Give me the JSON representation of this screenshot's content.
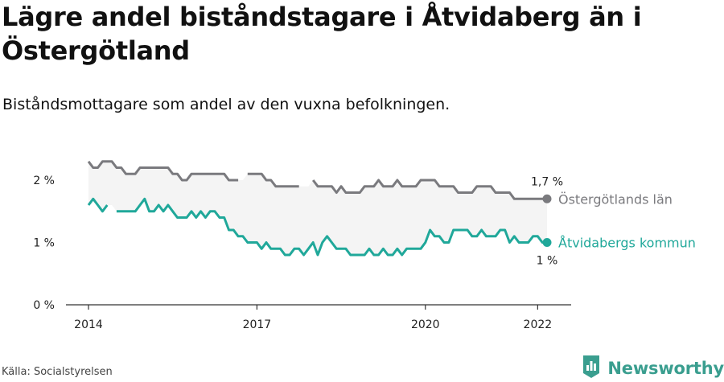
{
  "title": "Lägre andel biståndstagare i Åtvidaberg än i Östergötland",
  "subtitle": "Biståndsmottagare som andel av den vuxna befolkningen.",
  "source": "Källa: Socialstyrelsen",
  "brand": {
    "name": "Newsworthy",
    "logo_icon": "bar-chart-logo-icon"
  },
  "colors": {
    "regional": "#7a7a7e",
    "municipal": "#20a89a",
    "band": "#f4f4f4",
    "axis": "#333333",
    "text": "#111111"
  },
  "chart_data": {
    "type": "line",
    "title": "Lägre andel biståndstagare i Åtvidaberg än i Östergötland",
    "xlabel": "",
    "ylabel": "",
    "xlim": [
      "2014-01",
      "2022-03"
    ],
    "ylim": [
      0,
      2.5
    ],
    "x_ticks": [
      {
        "year": 2014,
        "label": "2014"
      },
      {
        "year": 2017,
        "label": "2017"
      },
      {
        "year": 2020,
        "label": "2020"
      },
      {
        "year": 2022,
        "label": "2022"
      }
    ],
    "y_ticks": [
      {
        "value": 0,
        "label": "0 %"
      },
      {
        "value": 1,
        "label": "1 %"
      },
      {
        "value": 2,
        "label": "2 %"
      }
    ],
    "grid": false,
    "legend": "end-of-line labels",
    "series": [
      {
        "name": "Östergötlands län",
        "color": "#7a7a7e",
        "end_value_label": "1,7 %",
        "points": [
          {
            "x": "2014-01",
            "y": 2.3
          },
          {
            "x": "2014-02",
            "y": 2.2
          },
          {
            "x": "2014-03",
            "y": 2.2
          },
          {
            "x": "2014-04",
            "y": 2.3
          },
          {
            "x": "2014-05",
            "y": 2.3
          },
          {
            "x": "2014-06",
            "y": 2.3
          },
          {
            "x": "2014-07",
            "y": 2.2
          },
          {
            "x": "2014-08",
            "y": 2.2
          },
          {
            "x": "2014-09",
            "y": 2.1
          },
          {
            "x": "2014-10",
            "y": 2.1
          },
          {
            "x": "2014-11",
            "y": 2.1
          },
          {
            "x": "2014-12",
            "y": 2.2
          },
          {
            "x": "2015-01",
            "y": 2.2
          },
          {
            "x": "2015-02",
            "y": 2.2
          },
          {
            "x": "2015-03",
            "y": 2.2
          },
          {
            "x": "2015-04",
            "y": 2.2
          },
          {
            "x": "2015-05",
            "y": 2.2
          },
          {
            "x": "2015-06",
            "y": 2.2
          },
          {
            "x": "2015-07",
            "y": 2.1
          },
          {
            "x": "2015-08",
            "y": 2.1
          },
          {
            "x": "2015-09",
            "y": 2.0
          },
          {
            "x": "2015-10",
            "y": 2.0
          },
          {
            "x": "2015-11",
            "y": 2.1
          },
          {
            "x": "2015-12",
            "y": 2.1
          },
          {
            "x": "2016-01",
            "y": 2.1
          },
          {
            "x": "2016-02",
            "y": 2.1
          },
          {
            "x": "2016-03",
            "y": 2.1
          },
          {
            "x": "2016-04",
            "y": 2.1
          },
          {
            "x": "2016-05",
            "y": 2.1
          },
          {
            "x": "2016-06",
            "y": 2.1
          },
          {
            "x": "2016-07",
            "y": 2.0
          },
          {
            "x": "2016-08",
            "y": 2.0
          },
          {
            "x": "2016-09",
            "y": 2.0
          },
          {
            "x": "2016-10",
            "y": null
          },
          {
            "x": "2016-11",
            "y": 2.1
          },
          {
            "x": "2016-12",
            "y": 2.1
          },
          {
            "x": "2017-01",
            "y": 2.1
          },
          {
            "x": "2017-02",
            "y": 2.1
          },
          {
            "x": "2017-03",
            "y": 2.0
          },
          {
            "x": "2017-04",
            "y": 2.0
          },
          {
            "x": "2017-05",
            "y": 1.9
          },
          {
            "x": "2017-06",
            "y": 1.9
          },
          {
            "x": "2017-07",
            "y": 1.9
          },
          {
            "x": "2017-08",
            "y": 1.9
          },
          {
            "x": "2017-09",
            "y": 1.9
          },
          {
            "x": "2017-10",
            "y": 1.9
          },
          {
            "x": "2017-11",
            "y": null
          },
          {
            "x": "2018-01",
            "y": 2.0
          },
          {
            "x": "2018-02",
            "y": 1.9
          },
          {
            "x": "2018-03",
            "y": 1.9
          },
          {
            "x": "2018-04",
            "y": 1.9
          },
          {
            "x": "2018-05",
            "y": 1.9
          },
          {
            "x": "2018-06",
            "y": 1.8
          },
          {
            "x": "2018-07",
            "y": 1.9
          },
          {
            "x": "2018-08",
            "y": 1.8
          },
          {
            "x": "2018-09",
            "y": 1.8
          },
          {
            "x": "2018-10",
            "y": 1.8
          },
          {
            "x": "2018-11",
            "y": 1.8
          },
          {
            "x": "2018-12",
            "y": 1.9
          },
          {
            "x": "2019-01",
            "y": 1.9
          },
          {
            "x": "2019-02",
            "y": 1.9
          },
          {
            "x": "2019-03",
            "y": 2.0
          },
          {
            "x": "2019-04",
            "y": 1.9
          },
          {
            "x": "2019-05",
            "y": 1.9
          },
          {
            "x": "2019-06",
            "y": 1.9
          },
          {
            "x": "2019-07",
            "y": 2.0
          },
          {
            "x": "2019-08",
            "y": 1.9
          },
          {
            "x": "2019-09",
            "y": 1.9
          },
          {
            "x": "2019-10",
            "y": 1.9
          },
          {
            "x": "2019-11",
            "y": 1.9
          },
          {
            "x": "2019-12",
            "y": 2.0
          },
          {
            "x": "2020-01",
            "y": 2.0
          },
          {
            "x": "2020-02",
            "y": 2.0
          },
          {
            "x": "2020-03",
            "y": 2.0
          },
          {
            "x": "2020-04",
            "y": 1.9
          },
          {
            "x": "2020-05",
            "y": 1.9
          },
          {
            "x": "2020-06",
            "y": 1.9
          },
          {
            "x": "2020-07",
            "y": 1.9
          },
          {
            "x": "2020-08",
            "y": 1.8
          },
          {
            "x": "2020-09",
            "y": 1.8
          },
          {
            "x": "2020-10",
            "y": 1.8
          },
          {
            "x": "2020-11",
            "y": 1.8
          },
          {
            "x": "2020-12",
            "y": 1.9
          },
          {
            "x": "2021-01",
            "y": 1.9
          },
          {
            "x": "2021-02",
            "y": 1.9
          },
          {
            "x": "2021-03",
            "y": 1.9
          },
          {
            "x": "2021-04",
            "y": 1.8
          },
          {
            "x": "2021-05",
            "y": 1.8
          },
          {
            "x": "2021-06",
            "y": 1.8
          },
          {
            "x": "2021-07",
            "y": 1.8
          },
          {
            "x": "2021-08",
            "y": 1.7
          },
          {
            "x": "2021-09",
            "y": 1.7
          },
          {
            "x": "2021-10",
            "y": 1.7
          },
          {
            "x": "2021-11",
            "y": 1.7
          },
          {
            "x": "2021-12",
            "y": 1.7
          },
          {
            "x": "2022-01",
            "y": 1.7
          },
          {
            "x": "2022-02",
            "y": 1.7
          },
          {
            "x": "2022-03",
            "y": 1.7
          }
        ]
      },
      {
        "name": "Åtvidabergs kommun",
        "color": "#20a89a",
        "end_value_label": "1 %",
        "points": [
          {
            "x": "2014-01",
            "y": 1.6
          },
          {
            "x": "2014-02",
            "y": 1.7
          },
          {
            "x": "2014-03",
            "y": 1.6
          },
          {
            "x": "2014-04",
            "y": 1.5
          },
          {
            "x": "2014-05",
            "y": 1.6
          },
          {
            "x": "2014-06",
            "y": null
          },
          {
            "x": "2014-07",
            "y": 1.5
          },
          {
            "x": "2014-08",
            "y": 1.5
          },
          {
            "x": "2014-09",
            "y": 1.5
          },
          {
            "x": "2014-10",
            "y": 1.5
          },
          {
            "x": "2014-11",
            "y": 1.5
          },
          {
            "x": "2014-12",
            "y": 1.6
          },
          {
            "x": "2015-01",
            "y": 1.7
          },
          {
            "x": "2015-02",
            "y": 1.5
          },
          {
            "x": "2015-03",
            "y": 1.5
          },
          {
            "x": "2015-04",
            "y": 1.6
          },
          {
            "x": "2015-05",
            "y": 1.5
          },
          {
            "x": "2015-06",
            "y": 1.6
          },
          {
            "x": "2015-07",
            "y": 1.5
          },
          {
            "x": "2015-08",
            "y": 1.4
          },
          {
            "x": "2015-09",
            "y": 1.4
          },
          {
            "x": "2015-10",
            "y": 1.4
          },
          {
            "x": "2015-11",
            "y": 1.5
          },
          {
            "x": "2015-12",
            "y": 1.4
          },
          {
            "x": "2016-01",
            "y": 1.5
          },
          {
            "x": "2016-02",
            "y": 1.4
          },
          {
            "x": "2016-03",
            "y": 1.5
          },
          {
            "x": "2016-04",
            "y": 1.5
          },
          {
            "x": "2016-05",
            "y": 1.4
          },
          {
            "x": "2016-06",
            "y": 1.4
          },
          {
            "x": "2016-07",
            "y": 1.2
          },
          {
            "x": "2016-08",
            "y": 1.2
          },
          {
            "x": "2016-09",
            "y": 1.1
          },
          {
            "x": "2016-10",
            "y": 1.1
          },
          {
            "x": "2016-11",
            "y": 1.0
          },
          {
            "x": "2016-12",
            "y": 1.0
          },
          {
            "x": "2017-01",
            "y": 1.0
          },
          {
            "x": "2017-02",
            "y": 0.9
          },
          {
            "x": "2017-03",
            "y": 1.0
          },
          {
            "x": "2017-04",
            "y": 0.9
          },
          {
            "x": "2017-05",
            "y": 0.9
          },
          {
            "x": "2017-06",
            "y": 0.9
          },
          {
            "x": "2017-07",
            "y": 0.8
          },
          {
            "x": "2017-08",
            "y": 0.8
          },
          {
            "x": "2017-09",
            "y": 0.9
          },
          {
            "x": "2017-10",
            "y": 0.9
          },
          {
            "x": "2017-11",
            "y": 0.8
          },
          {
            "x": "2017-12",
            "y": 0.9
          },
          {
            "x": "2018-01",
            "y": 1.0
          },
          {
            "x": "2018-02",
            "y": 0.8
          },
          {
            "x": "2018-03",
            "y": 1.0
          },
          {
            "x": "2018-04",
            "y": 1.1
          },
          {
            "x": "2018-05",
            "y": 1.0
          },
          {
            "x": "2018-06",
            "y": 0.9
          },
          {
            "x": "2018-07",
            "y": 0.9
          },
          {
            "x": "2018-08",
            "y": 0.9
          },
          {
            "x": "2018-09",
            "y": 0.8
          },
          {
            "x": "2018-10",
            "y": 0.8
          },
          {
            "x": "2018-11",
            "y": 0.8
          },
          {
            "x": "2018-12",
            "y": 0.8
          },
          {
            "x": "2019-01",
            "y": 0.9
          },
          {
            "x": "2019-02",
            "y": 0.8
          },
          {
            "x": "2019-03",
            "y": 0.8
          },
          {
            "x": "2019-04",
            "y": 0.9
          },
          {
            "x": "2019-05",
            "y": 0.8
          },
          {
            "x": "2019-06",
            "y": 0.8
          },
          {
            "x": "2019-07",
            "y": 0.9
          },
          {
            "x": "2019-08",
            "y": 0.8
          },
          {
            "x": "2019-09",
            "y": 0.9
          },
          {
            "x": "2019-10",
            "y": 0.9
          },
          {
            "x": "2019-11",
            "y": 0.9
          },
          {
            "x": "2019-12",
            "y": 0.9
          },
          {
            "x": "2020-01",
            "y": 1.0
          },
          {
            "x": "2020-02",
            "y": 1.2
          },
          {
            "x": "2020-03",
            "y": 1.1
          },
          {
            "x": "2020-04",
            "y": 1.1
          },
          {
            "x": "2020-05",
            "y": 1.0
          },
          {
            "x": "2020-06",
            "y": 1.0
          },
          {
            "x": "2020-07",
            "y": 1.2
          },
          {
            "x": "2020-08",
            "y": 1.2
          },
          {
            "x": "2020-09",
            "y": 1.2
          },
          {
            "x": "2020-10",
            "y": 1.2
          },
          {
            "x": "2020-11",
            "y": 1.1
          },
          {
            "x": "2020-12",
            "y": 1.1
          },
          {
            "x": "2021-01",
            "y": 1.2
          },
          {
            "x": "2021-02",
            "y": 1.1
          },
          {
            "x": "2021-03",
            "y": 1.1
          },
          {
            "x": "2021-04",
            "y": 1.1
          },
          {
            "x": "2021-05",
            "y": 1.2
          },
          {
            "x": "2021-06",
            "y": 1.2
          },
          {
            "x": "2021-07",
            "y": 1.0
          },
          {
            "x": "2021-08",
            "y": 1.1
          },
          {
            "x": "2021-09",
            "y": 1.0
          },
          {
            "x": "2021-10",
            "y": 1.0
          },
          {
            "x": "2021-11",
            "y": 1.0
          },
          {
            "x": "2021-12",
            "y": 1.1
          },
          {
            "x": "2022-01",
            "y": 1.1
          },
          {
            "x": "2022-02",
            "y": 1.0
          },
          {
            "x": "2022-03",
            "y": 1.0
          }
        ]
      }
    ]
  }
}
